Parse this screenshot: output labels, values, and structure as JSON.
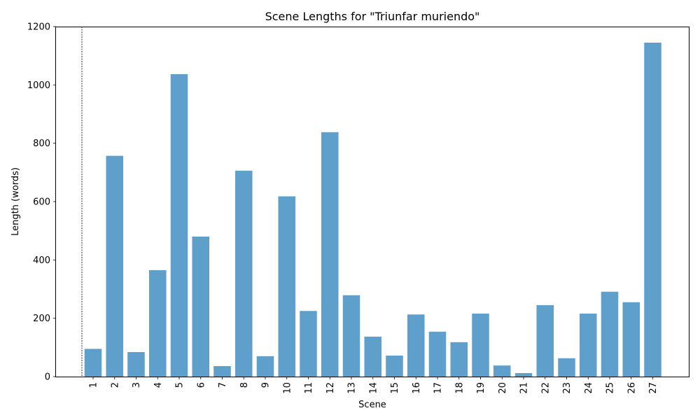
{
  "chart_data": {
    "type": "bar",
    "title": "Scene Lengths for \"Triunfar muriendo\"",
    "xlabel": "Scene",
    "ylabel": "Length (words)",
    "categories": [
      "1",
      "2",
      "3",
      "4",
      "5",
      "6",
      "7",
      "8",
      "9",
      "10",
      "11",
      "12",
      "13",
      "14",
      "15",
      "16",
      "17",
      "18",
      "19",
      "20",
      "21",
      "22",
      "23",
      "24",
      "25",
      "26",
      "27"
    ],
    "values": [
      95,
      757,
      84,
      365,
      1037,
      480,
      36,
      706,
      70,
      618,
      225,
      838,
      279,
      137,
      72,
      213,
      154,
      118,
      216,
      38,
      12,
      245,
      63,
      216,
      291,
      255,
      1145
    ],
    "ylim": [
      0,
      1200
    ],
    "yticks": [
      0,
      200,
      400,
      600,
      800,
      1000,
      1200
    ],
    "bar_color": "#5f9fcc",
    "grid": false,
    "annotations": [
      "dashed vertical line before scene 1"
    ]
  }
}
